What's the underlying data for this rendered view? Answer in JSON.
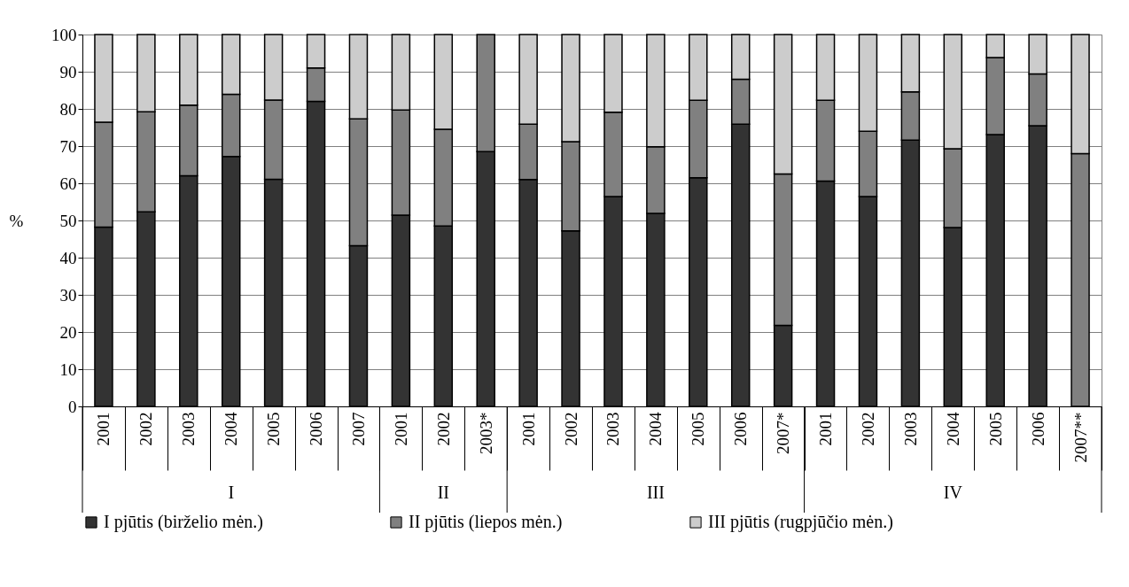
{
  "chart_data": {
    "type": "bar",
    "stacked": true,
    "ylabel": "%",
    "categories": [
      "2001",
      "2002",
      "2003",
      "2004",
      "2005",
      "2006",
      "2007",
      "2001",
      "2002",
      "2003*",
      "2001",
      "2002",
      "2003",
      "2004",
      "2005",
      "2006",
      "2007*",
      "2001",
      "2002",
      "2003",
      "2004",
      "2005",
      "2006",
      "2007**"
    ],
    "annotations": [
      "I",
      "II",
      "III",
      "IV"
    ],
    "series": [
      {
        "name": "I pjūtis (birželio mėn.)",
        "color": "#333333",
        "values": [
          48.2,
          52.3,
          62,
          67.2,
          61.1,
          82,
          43.2,
          51.4,
          48.5,
          68.5,
          61,
          47.2,
          56.4,
          51.9,
          61.5,
          75.9,
          21.8,
          60.6,
          56.4,
          71.6,
          48.1,
          73.1,
          75.5,
          0
        ]
      },
      {
        "name": "II pjūtis (liepos mėn.)",
        "color": "#808080",
        "values": [
          28.2,
          26.9,
          19,
          16.7,
          21.3,
          9,
          34.1,
          28.3,
          26,
          31.5,
          14.9,
          24,
          22.7,
          17.9,
          20.8,
          12.1,
          40.7,
          21.7,
          17.6,
          13,
          21.2,
          20.7,
          13.9,
          68
        ]
      },
      {
        "name": "III pjūtis (rugpjūčio mėn.)",
        "color": "#cccccc",
        "values": [
          23.6,
          20.8,
          19,
          16.1,
          17.6,
          9,
          22.7,
          20.3,
          25.5,
          0,
          24.1,
          28.8,
          20.9,
          30.2,
          17.7,
          12,
          37.5,
          17.7,
          26,
          15.4,
          30.7,
          6.2,
          10.6,
          32
        ]
      }
    ],
    "ylim": [
      0,
      100
    ],
    "yticks": [
      0,
      10,
      20,
      30,
      40,
      50,
      60,
      70,
      80,
      90,
      100
    ],
    "grid": "y",
    "legend": "bottom"
  }
}
